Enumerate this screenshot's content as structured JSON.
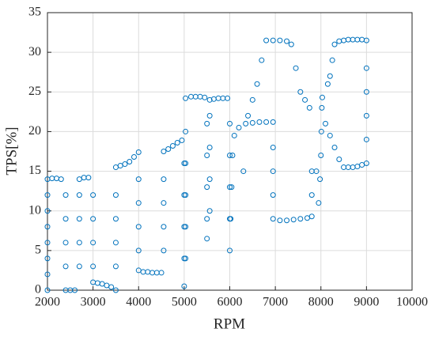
{
  "chart_data": {
    "type": "scatter",
    "xlabel": "RPM",
    "ylabel": "TPS[%]",
    "xlim": [
      2000,
      10000
    ],
    "ylim": [
      0,
      35
    ],
    "xticks": [
      2000,
      3000,
      4000,
      5000,
      6000,
      7000,
      8000,
      9000,
      10000
    ],
    "yticks": [
      0,
      5,
      10,
      15,
      20,
      25,
      30,
      35
    ],
    "grid": true,
    "color": "#0072BD",
    "x": [
      2000,
      2000,
      2000,
      2000,
      2000,
      2000,
      2000,
      2000,
      2100,
      2200,
      2300,
      2400,
      2400,
      2400,
      2400,
      2400,
      2500,
      2600,
      2700,
      2700,
      2700,
      2700,
      2700,
      2800,
      2900,
      3000,
      3000,
      3000,
      3000,
      3000,
      3100,
      3200,
      3300,
      3400,
      3500,
      3500,
      3500,
      3500,
      3500,
      3500,
      3600,
      3700,
      3800,
      3900,
      4000,
      4000,
      4000,
      4000,
      4000,
      4000,
      4100,
      4200,
      4300,
      4400,
      4500,
      4550,
      4550,
      4550,
      4550,
      4550,
      4650,
      4750,
      4850,
      4950,
      5000,
      5000,
      5000,
      5000,
      5000,
      5030,
      5030,
      5030,
      5030,
      5030,
      5030,
      5150,
      5250,
      5350,
      5450,
      5500,
      5500,
      5500,
      5500,
      5500,
      5560,
      5560,
      5560,
      5560,
      5560,
      5650,
      5750,
      5850,
      5950,
      6000,
      6000,
      6000,
      6000,
      6000,
      6020,
      6040,
      6060,
      6100,
      6200,
      6350,
      6500,
      6650,
      6800,
      6950,
      6950,
      6950,
      6950,
      6950,
      7100,
      7250,
      7400,
      7550,
      7700,
      7800,
      7800,
      7800,
      7900,
      7950,
      7980,
      8000,
      8010,
      8020,
      8030,
      6300,
      6400,
      6500,
      6600,
      6700,
      6800,
      6950,
      7100,
      7250,
      7350,
      7450,
      7550,
      7650,
      7750,
      8100,
      8200,
      8300,
      8400,
      8500,
      8600,
      8700,
      8800,
      8900,
      8150,
      8200,
      8250,
      8300,
      8400,
      8500,
      8600,
      8700,
      8800,
      8900,
      9000,
      9000,
      9000,
      9000,
      9000,
      9000
    ],
    "y": [
      0,
      2,
      4,
      6,
      8,
      10,
      12,
      14,
      14.1,
      14.1,
      14,
      12,
      9,
      6,
      3,
      0,
      0,
      0,
      3,
      6,
      9,
      12,
      14,
      14.2,
      14.2,
      12,
      9,
      6,
      3,
      1,
      0.9,
      0.8,
      0.6,
      0.4,
      0,
      3,
      6,
      9,
      12,
      15.5,
      15.7,
      15.9,
      16.2,
      16.8,
      17.4,
      14,
      11,
      8,
      5,
      2.5,
      2.3,
      2.3,
      2.2,
      2.2,
      2.2,
      5,
      8,
      11,
      14,
      17.5,
      17.8,
      18.2,
      18.6,
      18.9,
      16,
      12,
      8,
      4,
      0.5,
      4,
      8,
      12,
      16,
      20,
      24.2,
      24.4,
      24.4,
      24.4,
      24.3,
      21,
      17,
      13,
      9,
      6.5,
      10,
      14,
      18,
      22,
      24,
      24.1,
      24.2,
      24.2,
      24.2,
      21,
      17,
      13,
      9,
      5,
      9,
      13,
      17,
      19.5,
      20.5,
      21,
      21.1,
      21.2,
      21.2,
      21.2,
      18,
      15,
      12,
      9,
      8.8,
      8.8,
      8.9,
      9,
      9.1,
      9.3,
      12,
      15,
      15,
      11,
      14,
      17,
      20,
      23,
      24.3,
      15,
      22,
      24,
      26,
      29,
      31.5,
      31.5,
      31.5,
      31.4,
      31,
      28,
      25,
      24,
      23,
      21,
      19.5,
      18,
      16.5,
      15.5,
      15.5,
      15.5,
      15.6,
      15.8,
      26,
      27,
      29,
      31,
      31.4,
      31.5,
      31.6,
      31.6,
      31.6,
      31.6,
      31.5,
      28,
      25,
      22,
      19,
      16
    ]
  }
}
